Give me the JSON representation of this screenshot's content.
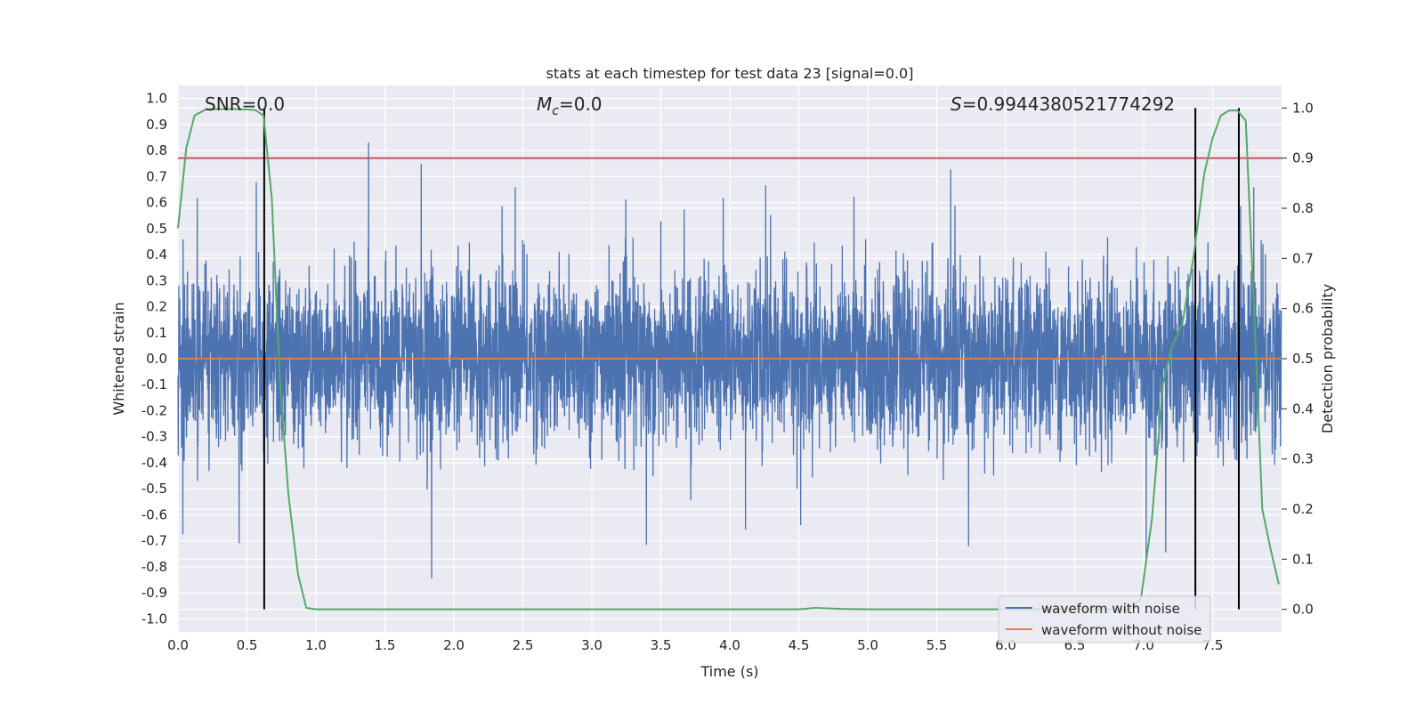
{
  "chart_data": {
    "type": "line",
    "title": "stats at each timestep for test data 23 [signal=0.0]",
    "xlabel": "Time (s)",
    "ylabel": "Whitened strain",
    "y2label": "Detection probability",
    "xlim": [
      0.0,
      8.0
    ],
    "ylim": [
      -1.05,
      1.05
    ],
    "y2lim": [
      -0.045,
      1.045
    ],
    "x_ticks": [
      "0.0",
      "0.5",
      "1.0",
      "1.5",
      "2.0",
      "2.5",
      "3.0",
      "3.5",
      "4.0",
      "4.5",
      "5.0",
      "5.5",
      "6.0",
      "6.5",
      "7.0",
      "7.5"
    ],
    "y_ticks": [
      "1.0",
      "0.9",
      "0.8",
      "0.7",
      "0.6",
      "0.5",
      "0.4",
      "0.3",
      "0.2",
      "0.1",
      "0.0",
      "-0.1",
      "-0.2",
      "-0.3",
      "-0.4",
      "-0.5",
      "-0.6",
      "-0.7",
      "-0.8",
      "-0.9",
      "-1.0"
    ],
    "y2_ticks": [
      "1.0",
      "0.9",
      "0.8",
      "0.7",
      "0.6",
      "0.5",
      "0.4",
      "0.3",
      "0.2",
      "0.1",
      "0.0"
    ],
    "annotations": {
      "snr": "SNR=0.0",
      "mc_symbol": "M",
      "mc_sub": "c",
      "mc_value": "=0.0",
      "s_symbol": "S",
      "s_value": "=0.9944380521774292"
    },
    "threshold": 0.9,
    "vertical_markers": [
      0.625,
      7.375,
      7.69
    ],
    "series": [
      {
        "name": "waveform with noise",
        "color": "#4c72b0",
        "style": "dense noise, mostly within ±0.4, peaks to ±1.0"
      },
      {
        "name": "waveform without noise",
        "color": "#dd8452",
        "values_constant": 0.0
      },
      {
        "name": "detection probability",
        "color": "#55a868",
        "x": [
          0.0,
          0.06,
          0.12,
          0.2,
          0.3,
          0.4,
          0.5,
          0.56,
          0.62,
          0.68,
          0.74,
          0.8,
          0.87,
          0.93,
          1.0,
          2.0,
          3.0,
          4.0,
          4.5,
          4.62,
          4.8,
          5.0,
          6.0,
          6.9,
          6.98,
          7.06,
          7.14,
          7.2,
          7.28,
          7.36,
          7.44,
          7.5,
          7.56,
          7.62,
          7.68,
          7.74,
          7.8,
          7.86,
          7.92,
          7.98
        ],
        "values": [
          0.76,
          0.92,
          0.985,
          0.997,
          0.998,
          0.998,
          0.997,
          0.996,
          0.985,
          0.82,
          0.45,
          0.23,
          0.07,
          0.003,
          0.0,
          0.0,
          0.0,
          0.0,
          0.0,
          0.003,
          0.001,
          0.0,
          0.0,
          0.0,
          0.02,
          0.18,
          0.45,
          0.52,
          0.57,
          0.7,
          0.87,
          0.94,
          0.985,
          0.995,
          0.995,
          0.975,
          0.6,
          0.2,
          0.12,
          0.05
        ]
      }
    ],
    "legend": {
      "position": "lower-right",
      "entries": [
        {
          "label": "waveform with noise",
          "color": "#4c72b0"
        },
        {
          "label": "waveform without noise",
          "color": "#dd8452"
        }
      ]
    },
    "colors": {
      "background": "#eaeaf2",
      "grid": "#ffffff",
      "threshold": "#c44e52",
      "marker": "#000000"
    }
  }
}
